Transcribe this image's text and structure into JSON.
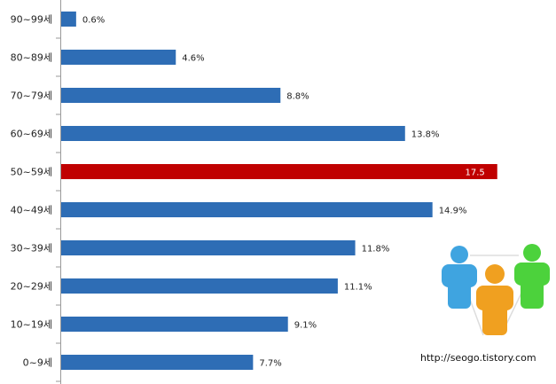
{
  "chart_data": {
    "type": "bar",
    "orientation": "horizontal",
    "categories": [
      "90~99세",
      "80~89세",
      "70~79세",
      "60~69세",
      "50~59세",
      "40~49세",
      "30~39세",
      "20~29세",
      "10~19세",
      "0~9세"
    ],
    "values": [
      0.6,
      4.6,
      8.8,
      13.8,
      17.5,
      14.9,
      11.8,
      11.1,
      9.1,
      7.7
    ],
    "value_labels": [
      "0.6%",
      "4.6%",
      "8.8%",
      "13.8%",
      "17.5",
      "14.9%",
      "11.8%",
      "11.1%",
      "9.1%",
      "7.7%"
    ],
    "highlight_index": 4,
    "xlim": [
      0,
      20
    ],
    "grid": false,
    "colors": {
      "bar": "#2e6db5",
      "highlight": "#c00000"
    }
  },
  "watermark": "http://seogo.tistory.com"
}
